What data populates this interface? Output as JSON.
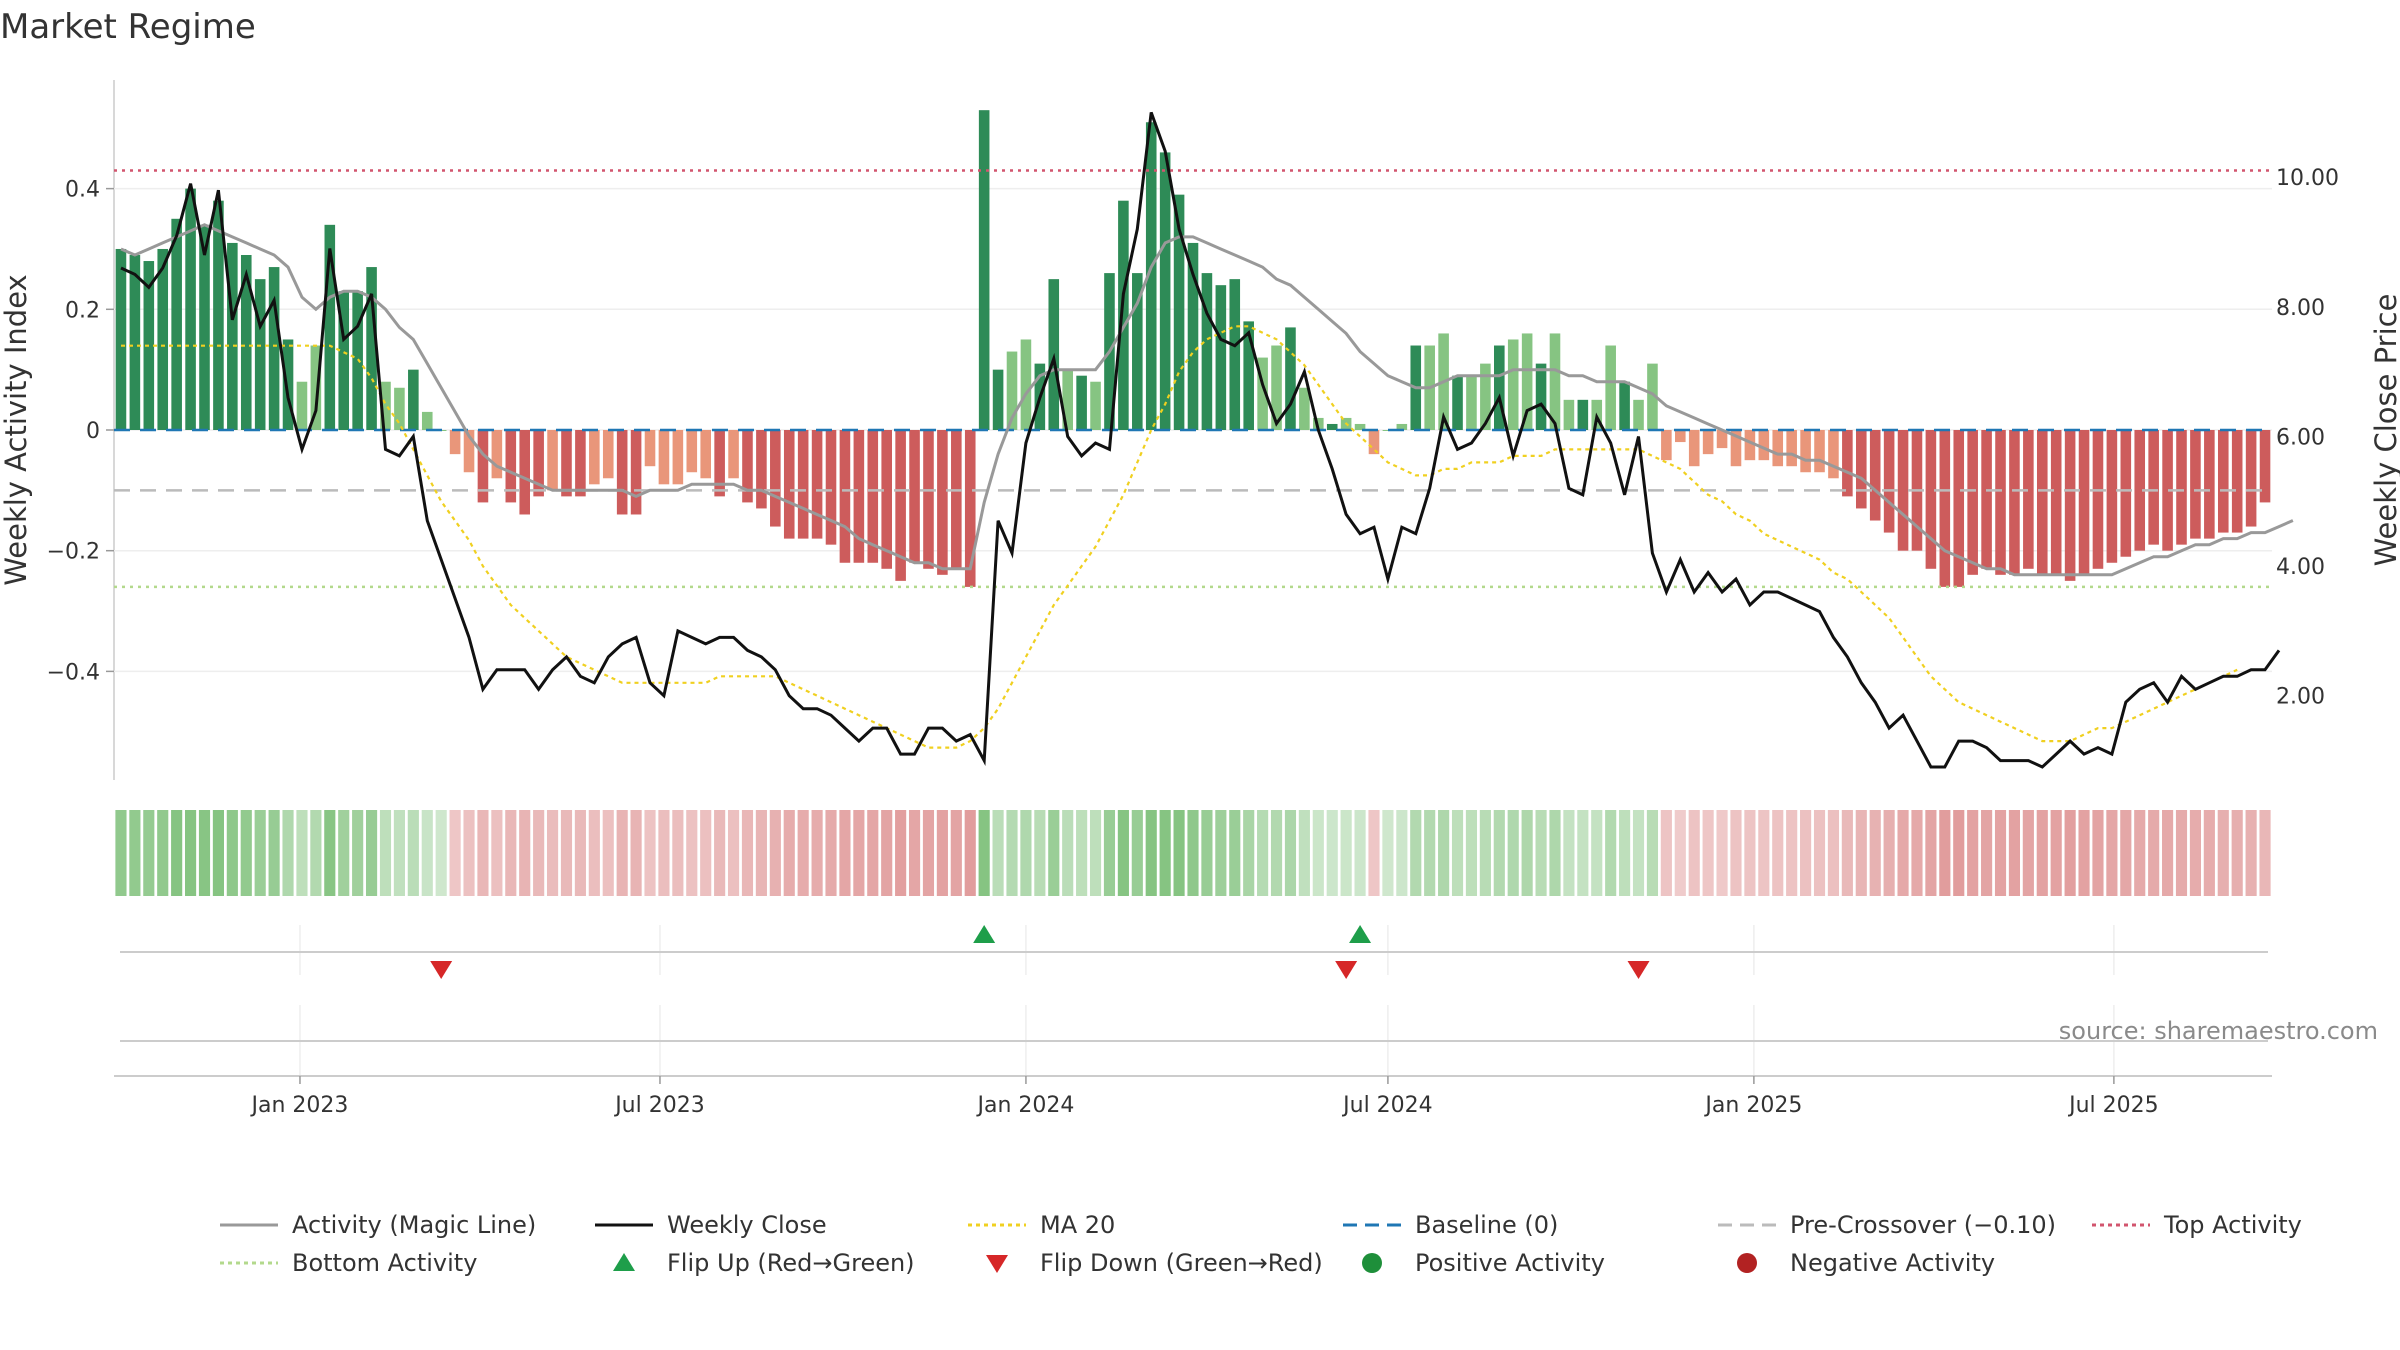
{
  "title": "Market Regime",
  "source": "source: sharemaestro.com",
  "y_left_label": "Weekly Activity Index",
  "y_right_label": "Weekly Close Price",
  "colors": {
    "pos_dark": "#2e8b57",
    "pos_light": "#86c482",
    "neg_dark": "#cd5c5c",
    "neg_light": "#e9967a",
    "magic": "#999999",
    "close": "#111111",
    "ma20": "#f0d020",
    "baseline": "#1f77b4",
    "precross": "#bbbbbb",
    "top": "#d2556e",
    "bottom": "#b3d98c",
    "flip_up": "#1e9e4a",
    "flip_down": "#d62728",
    "pos_dot": "#1e8f3a",
    "neg_dot": "#b22222"
  },
  "legend": [
    {
      "label": "Activity (Magic Line)",
      "kind": "line",
      "color": "#999999",
      "dash": ""
    },
    {
      "label": "Weekly Close",
      "kind": "line",
      "color": "#111111",
      "dash": ""
    },
    {
      "label": "MA 20",
      "kind": "line",
      "color": "#f0d020",
      "dash": "4,4"
    },
    {
      "label": "Baseline (0)",
      "kind": "line",
      "color": "#1f77b4",
      "dash": "14,8"
    },
    {
      "label": "Pre-Crossover (−0.10)",
      "kind": "line",
      "color": "#bbbbbb",
      "dash": "14,8"
    },
    {
      "label": "Top Activity",
      "kind": "line",
      "color": "#d2556e",
      "dash": "4,4"
    },
    {
      "label": "Bottom Activity",
      "kind": "line",
      "color": "#b3d98c",
      "dash": "4,4"
    },
    {
      "label": "Flip Up (Red→Green)",
      "kind": "tri-up",
      "color": "#1e9e4a",
      "dash": ""
    },
    {
      "label": "Flip Down (Green→Red)",
      "kind": "tri-down",
      "color": "#d62728",
      "dash": ""
    },
    {
      "label": "Positive Activity",
      "kind": "dot",
      "color": "#1e8f3a",
      "dash": ""
    },
    {
      "label": "Negative Activity",
      "kind": "dot",
      "color": "#b22222",
      "dash": ""
    }
  ],
  "chart_data": {
    "type": "bar",
    "x_start": "2022-10-03",
    "x_step_days": 7,
    "x_tick_labels": [
      {
        "date": "2023-01-01",
        "label": "Jan 2023"
      },
      {
        "date": "2023-07-01",
        "label": "Jul 2023"
      },
      {
        "date": "2024-01-01",
        "label": "Jan 2024"
      },
      {
        "date": "2024-07-01",
        "label": "Jul 2024"
      },
      {
        "date": "2025-01-01",
        "label": "Jan 2025"
      },
      {
        "date": "2025-07-01",
        "label": "Jul 2025"
      }
    ],
    "y_left_range": [
      -0.58,
      0.58
    ],
    "y_left_ticks": [
      {
        "v": 0.4,
        "label": "0.4"
      },
      {
        "v": 0.2,
        "label": "0.2"
      },
      {
        "v": 0,
        "label": "0"
      },
      {
        "v": -0.2,
        "label": "−0.2"
      },
      {
        "v": -0.4,
        "label": "−0.4"
      }
    ],
    "y_right_range": [
      0.7,
      11.5
    ],
    "y_right_ticks": [
      {
        "v": 10,
        "label": "10.00"
      },
      {
        "v": 8,
        "label": "8.00"
      },
      {
        "v": 6,
        "label": "6.00"
      },
      {
        "v": 4,
        "label": "4.00"
      },
      {
        "v": 2,
        "label": "2.00"
      }
    ],
    "reference_lines": {
      "baseline": 0,
      "pre_crossover": -0.1,
      "top_activity": 0.43,
      "bottom_activity": -0.26
    },
    "activity_bars": [
      0.3,
      0.29,
      0.28,
      0.3,
      0.35,
      0.4,
      0.34,
      0.38,
      0.31,
      0.29,
      0.25,
      0.27,
      0.15,
      0.08,
      0.14,
      0.34,
      0.23,
      0.23,
      0.27,
      0.08,
      0.07,
      0.1,
      0.03,
      0.0,
      -0.04,
      -0.07,
      -0.12,
      -0.08,
      -0.12,
      -0.14,
      -0.11,
      -0.1,
      -0.11,
      -0.11,
      -0.09,
      -0.08,
      -0.14,
      -0.14,
      -0.06,
      -0.09,
      -0.09,
      -0.07,
      -0.08,
      -0.11,
      -0.08,
      -0.12,
      -0.13,
      -0.16,
      -0.18,
      -0.18,
      -0.18,
      -0.19,
      -0.22,
      -0.22,
      -0.22,
      -0.23,
      -0.25,
      -0.22,
      -0.23,
      -0.24,
      -0.23,
      -0.26,
      0.53,
      0.1,
      0.13,
      0.15,
      0.11,
      0.25,
      0.1,
      0.09,
      0.08,
      0.26,
      0.38,
      0.26,
      0.51,
      0.46,
      0.39,
      0.31,
      0.26,
      0.24,
      0.25,
      0.18,
      0.12,
      0.14,
      0.17,
      0.07,
      0.02,
      0.01,
      0.02,
      0.01,
      -0.04,
      0.0,
      0.01,
      0.14,
      0.14,
      0.16,
      0.09,
      0.09,
      0.11,
      0.14,
      0.15,
      0.16,
      0.11,
      0.16,
      0.05,
      0.05,
      0.05,
      0.14,
      0.08,
      0.05,
      0.11,
      -0.05,
      -0.02,
      -0.06,
      -0.04,
      -0.03,
      -0.06,
      -0.05,
      -0.05,
      -0.06,
      -0.06,
      -0.07,
      -0.07,
      -0.08,
      -0.11,
      -0.13,
      -0.15,
      -0.17,
      -0.2,
      -0.2,
      -0.23,
      -0.26,
      -0.26,
      -0.24,
      -0.23,
      -0.24,
      -0.24,
      -0.23,
      -0.24,
      -0.24,
      -0.25,
      -0.24,
      -0.23,
      -0.22,
      -0.21,
      -0.2,
      -0.19,
      -0.2,
      -0.19,
      -0.18,
      -0.18,
      -0.17,
      -0.17,
      -0.16,
      -0.12
    ],
    "magic_line": [
      0.3,
      0.29,
      0.3,
      0.31,
      0.32,
      0.33,
      0.34,
      0.33,
      0.32,
      0.31,
      0.3,
      0.29,
      0.27,
      0.22,
      0.2,
      0.22,
      0.23,
      0.23,
      0.22,
      0.2,
      0.17,
      0.15,
      0.11,
      0.07,
      0.03,
      -0.01,
      -0.04,
      -0.06,
      -0.07,
      -0.08,
      -0.09,
      -0.1,
      -0.1,
      -0.1,
      -0.1,
      -0.1,
      -0.1,
      -0.11,
      -0.1,
      -0.1,
      -0.1,
      -0.09,
      -0.09,
      -0.09,
      -0.09,
      -0.1,
      -0.1,
      -0.11,
      -0.12,
      -0.13,
      -0.14,
      -0.15,
      -0.16,
      -0.18,
      -0.19,
      -0.2,
      -0.21,
      -0.22,
      -0.22,
      -0.23,
      -0.23,
      -0.23,
      -0.12,
      -0.04,
      0.02,
      0.06,
      0.09,
      0.1,
      0.1,
      0.1,
      0.1,
      0.13,
      0.17,
      0.21,
      0.27,
      0.31,
      0.32,
      0.32,
      0.31,
      0.3,
      0.29,
      0.28,
      0.27,
      0.25,
      0.24,
      0.22,
      0.2,
      0.18,
      0.16,
      0.13,
      0.11,
      0.09,
      0.08,
      0.07,
      0.07,
      0.08,
      0.09,
      0.09,
      0.09,
      0.09,
      0.1,
      0.1,
      0.1,
      0.1,
      0.09,
      0.09,
      0.08,
      0.08,
      0.08,
      0.07,
      0.06,
      0.04,
      0.03,
      0.02,
      0.01,
      0.0,
      -0.01,
      -0.02,
      -0.03,
      -0.04,
      -0.04,
      -0.05,
      -0.05,
      -0.06,
      -0.07,
      -0.08,
      -0.1,
      -0.12,
      -0.14,
      -0.16,
      -0.18,
      -0.2,
      -0.21,
      -0.22,
      -0.23,
      -0.23,
      -0.24,
      -0.24,
      -0.24,
      -0.24,
      -0.24,
      -0.24,
      -0.24,
      -0.24,
      -0.23,
      -0.22,
      -0.21,
      -0.21,
      -0.2,
      -0.19,
      -0.19,
      -0.18,
      -0.18,
      -0.17,
      -0.17,
      -0.16,
      -0.15
    ],
    "weekly_close": [
      8.6,
      8.5,
      8.3,
      8.6,
      9.1,
      9.9,
      8.8,
      9.8,
      7.8,
      8.5,
      7.7,
      8.1,
      6.6,
      5.8,
      6.4,
      8.9,
      7.5,
      7.7,
      8.2,
      5.8,
      5.7,
      6.0,
      4.7,
      4.1,
      3.5,
      2.9,
      2.1,
      2.4,
      2.4,
      2.4,
      2.1,
      2.4,
      2.6,
      2.3,
      2.2,
      2.6,
      2.8,
      2.9,
      2.2,
      2.0,
      3.0,
      2.9,
      2.8,
      2.9,
      2.9,
      2.7,
      2.6,
      2.4,
      2.0,
      1.8,
      1.8,
      1.7,
      1.5,
      1.3,
      1.5,
      1.5,
      1.1,
      1.1,
      1.5,
      1.5,
      1.3,
      1.4,
      1.0,
      4.7,
      4.2,
      5.9,
      6.6,
      7.2,
      6.0,
      5.7,
      5.9,
      5.8,
      8.2,
      9.2,
      11.0,
      10.4,
      9.2,
      8.5,
      7.9,
      7.5,
      7.4,
      7.6,
      6.8,
      6.2,
      6.5,
      7.0,
      6.1,
      5.5,
      4.8,
      4.5,
      4.6,
      3.8,
      4.6,
      4.5,
      5.2,
      6.3,
      5.8,
      5.9,
      6.2,
      6.6,
      5.7,
      6.4,
      6.5,
      6.2,
      5.2,
      5.1,
      6.3,
      5.9,
      5.1,
      6.0,
      4.2,
      3.6,
      4.1,
      3.6,
      3.9,
      3.6,
      3.8,
      3.4,
      3.6,
      3.6,
      3.5,
      3.4,
      3.3,
      2.9,
      2.6,
      2.2,
      1.9,
      1.5,
      1.7,
      1.3,
      0.9,
      0.9,
      1.3,
      1.3,
      1.2,
      1.0,
      1.0,
      1.0,
      0.9,
      1.1,
      1.3,
      1.1,
      1.2,
      1.1,
      1.9,
      2.1,
      2.2,
      1.9,
      2.3,
      2.1,
      2.2,
      2.3,
      2.3,
      2.4,
      2.4,
      2.7
    ],
    "ma20": [
      7.4,
      7.4,
      7.4,
      7.4,
      7.4,
      7.4,
      7.4,
      7.4,
      7.4,
      7.4,
      7.4,
      7.4,
      7.4,
      7.4,
      7.4,
      7.4,
      7.3,
      7.2,
      6.9,
      6.5,
      6.2,
      5.8,
      5.4,
      5.0,
      4.7,
      4.4,
      4.0,
      3.7,
      3.4,
      3.2,
      3.0,
      2.8,
      2.6,
      2.5,
      2.4,
      2.3,
      2.2,
      2.2,
      2.2,
      2.2,
      2.2,
      2.2,
      2.2,
      2.3,
      2.3,
      2.3,
      2.3,
      2.3,
      2.2,
      2.1,
      2.0,
      1.9,
      1.8,
      1.7,
      1.6,
      1.5,
      1.4,
      1.3,
      1.2,
      1.2,
      1.2,
      1.3,
      1.5,
      1.8,
      2.2,
      2.6,
      3.0,
      3.4,
      3.7,
      4.0,
      4.3,
      4.7,
      5.1,
      5.6,
      6.1,
      6.5,
      7.0,
      7.3,
      7.5,
      7.6,
      7.7,
      7.7,
      7.6,
      7.5,
      7.3,
      7.1,
      6.8,
      6.5,
      6.2,
      6.0,
      5.8,
      5.6,
      5.5,
      5.4,
      5.4,
      5.5,
      5.5,
      5.6,
      5.6,
      5.6,
      5.7,
      5.7,
      5.7,
      5.8,
      5.8,
      5.8,
      5.8,
      5.8,
      5.8,
      5.8,
      5.7,
      5.6,
      5.5,
      5.3,
      5.1,
      5.0,
      4.8,
      4.7,
      4.5,
      4.4,
      4.3,
      4.2,
      4.1,
      3.9,
      3.8,
      3.6,
      3.4,
      3.2,
      2.9,
      2.6,
      2.3,
      2.1,
      1.9,
      1.8,
      1.7,
      1.6,
      1.5,
      1.4,
      1.3,
      1.3,
      1.3,
      1.4,
      1.5,
      1.5,
      1.6,
      1.7,
      1.8,
      1.9,
      2.0,
      2.1,
      2.2,
      2.3,
      2.4
    ],
    "flip_up_weeks": [
      62,
      89
    ],
    "flip_down_weeks": [
      23,
      88,
      109
    ]
  }
}
